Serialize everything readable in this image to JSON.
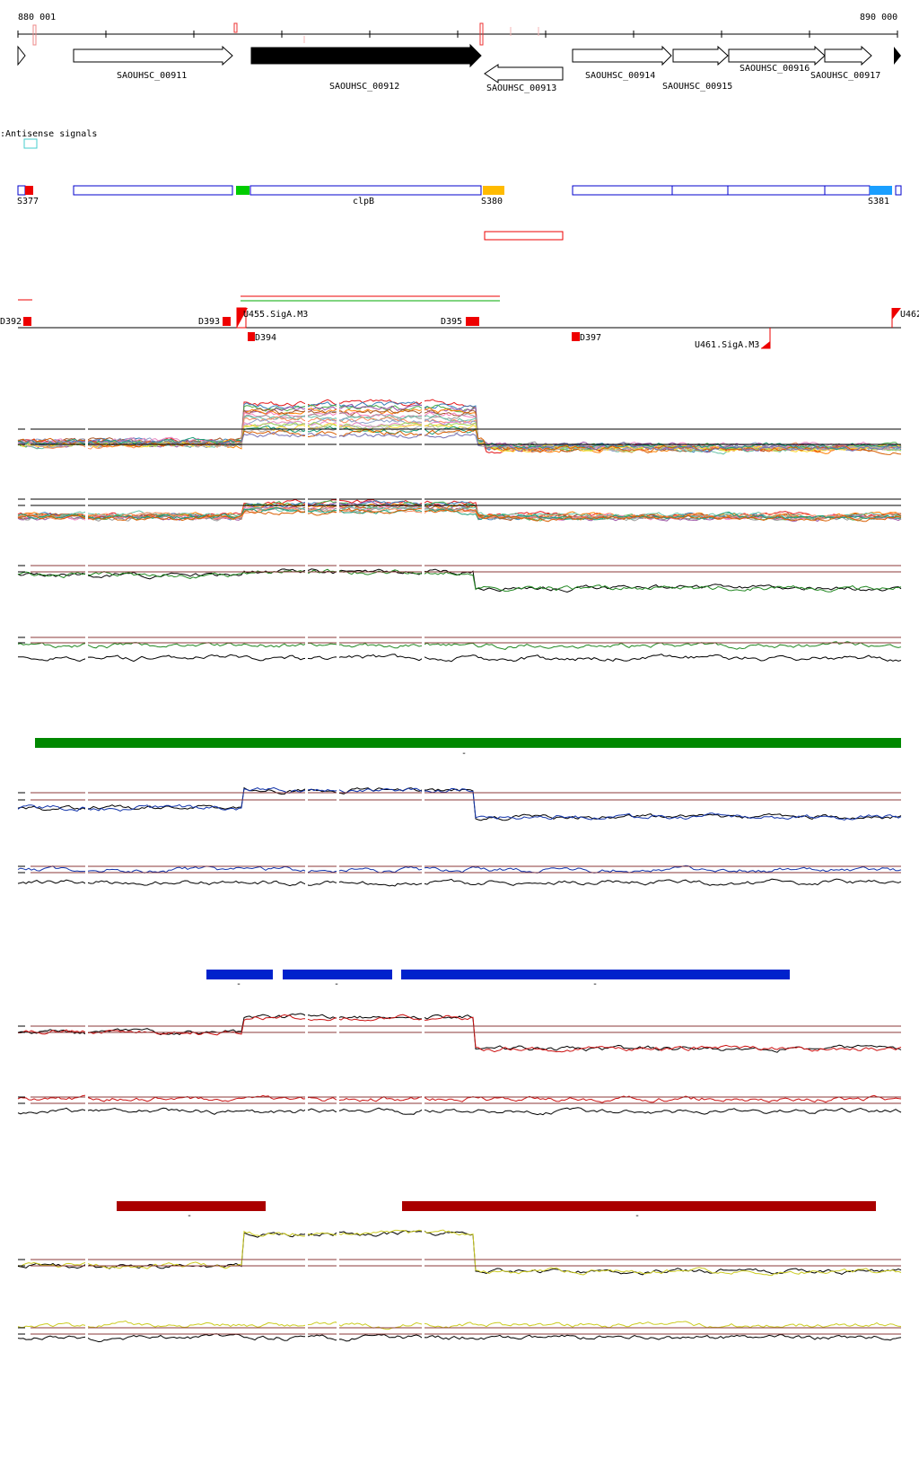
{
  "ruler": {
    "start_label": "880 001",
    "end_label": "890 000"
  },
  "colors": {
    "gene_fill": "#ffffff",
    "gene_fill_highlight": "#000000",
    "segment_outline": "#0000cc",
    "green": "#00cc00",
    "orange": "#ffbb00",
    "red": "#ee0000",
    "cyan": "#44cccc",
    "sky": "#1a9fff",
    "bar_green": "#008800",
    "bar_blue": "#0022cc",
    "bar_red": "#aa0000",
    "trace_green": "#228822",
    "trace_blue": "#1133aa",
    "trace_red": "#cc1111",
    "trace_yellow": "#cccc22",
    "threshold": "#8b3a3a"
  },
  "genes": [
    {
      "label": "SAOUHSC_00911",
      "strand": "+",
      "highlight": false
    },
    {
      "label": "SAOUHSC_00912",
      "strand": "+",
      "highlight": true
    },
    {
      "label": "SAOUHSC_00913",
      "strand": "-",
      "highlight": false
    },
    {
      "label": "SAOUHSC_00914",
      "strand": "+",
      "highlight": false
    },
    {
      "label": "SAOUHSC_00915",
      "strand": "+",
      "highlight": false
    },
    {
      "label": "SAOUHSC_00916",
      "strand": "+",
      "highlight": false
    },
    {
      "label": "SAOUHSC_00917",
      "strand": "+",
      "highlight": false
    }
  ],
  "antisense_label": ":Antisense signals",
  "segments": {
    "s377": "S377",
    "clpb": "clpB",
    "s380": "S380",
    "s381": "S381"
  },
  "signals": {
    "d392": "D392",
    "d393": "D393",
    "overlap_label": "U455.SigA.M3",
    "d395": "D395",
    "u462": "U462",
    "d394": "D394",
    "d397": "D397",
    "u461": "U461.SigA.M3"
  },
  "bar_labels": {
    "minus": "-"
  }
}
